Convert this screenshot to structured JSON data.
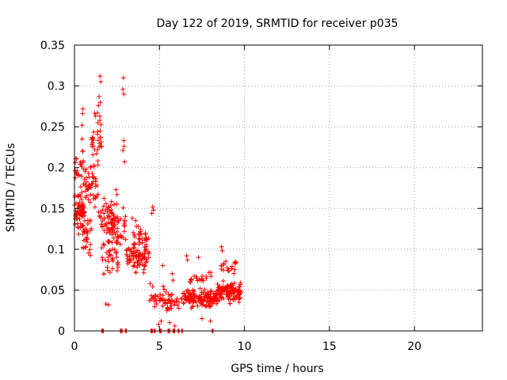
{
  "chart_data": {
    "type": "scatter",
    "title": "Day 122 of 2019, SRMTID for receiver p035",
    "xlabel": "GPS time / hours",
    "ylabel": "SRMTID / TECUs",
    "xlim": [
      0,
      24
    ],
    "ylim": [
      0,
      0.35
    ],
    "xticks": [
      0,
      5,
      10,
      15,
      20
    ],
    "xtick_labels": [
      "0",
      "5",
      "10",
      "15",
      "20"
    ],
    "yticks": [
      0,
      0.05,
      0.1,
      0.15,
      0.2,
      0.25,
      0.3,
      0.35
    ],
    "ytick_labels": [
      "0",
      "0.05",
      "0.1",
      "0.15",
      "0.2",
      "0.25",
      "0.3",
      "0.35"
    ],
    "grid": true,
    "marker": "plus",
    "series": [
      {
        "name": "SRMTID",
        "color": "#ff0000",
        "clusters": [
          {
            "x_range": [
              0.0,
              0.6
            ],
            "y_center": 0.14,
            "y_spread": 0.035,
            "count": 70
          },
          {
            "x_range": [
              0.0,
              0.6
            ],
            "y_center": 0.19,
            "y_spread": 0.04,
            "count": 25
          },
          {
            "x_range": [
              0.4,
              1.0
            ],
            "y_center": 0.12,
            "y_spread": 0.04,
            "count": 30
          },
          {
            "x_range": [
              0.6,
              1.4
            ],
            "y_center": 0.18,
            "y_spread": 0.04,
            "count": 45
          },
          {
            "x_range": [
              1.0,
              1.6
            ],
            "y_center": 0.24,
            "y_spread": 0.045,
            "count": 30
          },
          {
            "x_range": [
              1.4,
              2.4
            ],
            "y_center": 0.14,
            "y_spread": 0.03,
            "count": 60
          },
          {
            "x_range": [
              1.6,
              2.6
            ],
            "y_center": 0.09,
            "y_spread": 0.04,
            "count": 45
          },
          {
            "x_range": [
              2.2,
              3.0
            ],
            "y_center": 0.13,
            "y_spread": 0.03,
            "count": 30
          },
          {
            "x_range": [
              3.0,
              4.4
            ],
            "y_center": 0.09,
            "y_spread": 0.025,
            "count": 85
          },
          {
            "x_range": [
              3.4,
              4.4
            ],
            "y_center": 0.115,
            "y_spread": 0.02,
            "count": 25
          },
          {
            "x_range": [
              4.4,
              5.4
            ],
            "y_center": 0.04,
            "y_spread": 0.02,
            "count": 30
          },
          {
            "x_range": [
              5.4,
              6.4
            ],
            "y_center": 0.035,
            "y_spread": 0.02,
            "count": 30
          },
          {
            "x_range": [
              6.4,
              8.4
            ],
            "y_center": 0.04,
            "y_spread": 0.015,
            "count": 130
          },
          {
            "x_range": [
              6.8,
              8.2
            ],
            "y_center": 0.065,
            "y_spread": 0.015,
            "count": 20
          },
          {
            "x_range": [
              8.4,
              9.8
            ],
            "y_center": 0.048,
            "y_spread": 0.017,
            "count": 110
          },
          {
            "x_range": [
              8.6,
              9.6
            ],
            "y_center": 0.08,
            "y_spread": 0.012,
            "count": 20
          }
        ],
        "points": [
          {
            "x": 1.5,
            "y": 0.312
          },
          {
            "x": 1.55,
            "y": 0.305
          },
          {
            "x": 1.45,
            "y": 0.287
          },
          {
            "x": 1.52,
            "y": 0.28
          },
          {
            "x": 2.88,
            "y": 0.31
          },
          {
            "x": 2.9,
            "y": 0.29
          },
          {
            "x": 2.85,
            "y": 0.296
          },
          {
            "x": 0.5,
            "y": 0.272
          },
          {
            "x": 0.48,
            "y": 0.266
          },
          {
            "x": 0.45,
            "y": 0.252
          },
          {
            "x": 1.35,
            "y": 0.267
          },
          {
            "x": 1.38,
            "y": 0.255
          },
          {
            "x": 2.9,
            "y": 0.233
          },
          {
            "x": 2.92,
            "y": 0.226
          },
          {
            "x": 2.85,
            "y": 0.221
          },
          {
            "x": 2.95,
            "y": 0.207
          },
          {
            "x": 0.05,
            "y": 0.206
          },
          {
            "x": 0.1,
            "y": 0.193
          },
          {
            "x": 0.45,
            "y": 0.235
          },
          {
            "x": 0.5,
            "y": 0.22
          },
          {
            "x": 0.95,
            "y": 0.2
          },
          {
            "x": 1.2,
            "y": 0.222
          },
          {
            "x": 1.3,
            "y": 0.217
          },
          {
            "x": 4.6,
            "y": 0.152
          },
          {
            "x": 4.65,
            "y": 0.148
          },
          {
            "x": 4.55,
            "y": 0.144
          },
          {
            "x": 1.85,
            "y": 0.033
          },
          {
            "x": 2.0,
            "y": 0.032
          },
          {
            "x": 3.4,
            "y": 0.138
          },
          {
            "x": 3.6,
            "y": 0.135
          },
          {
            "x": 2.45,
            "y": 0.173
          },
          {
            "x": 2.5,
            "y": 0.167
          },
          {
            "x": 5.2,
            "y": 0.08
          },
          {
            "x": 5.75,
            "y": 0.07
          },
          {
            "x": 5.8,
            "y": 0.062
          },
          {
            "x": 6.6,
            "y": 0.092
          },
          {
            "x": 6.65,
            "y": 0.087
          },
          {
            "x": 7.3,
            "y": 0.09
          },
          {
            "x": 8.65,
            "y": 0.103
          },
          {
            "x": 8.7,
            "y": 0.098
          },
          {
            "x": 4.95,
            "y": 0.008
          },
          {
            "x": 5.1,
            "y": 0.012
          },
          {
            "x": 5.6,
            "y": 0.01
          },
          {
            "x": 5.9,
            "y": 0.006
          },
          {
            "x": 4.45,
            "y": 0.058
          },
          {
            "x": 8.0,
            "y": 0.012
          },
          {
            "x": 7.5,
            "y": 0.015
          }
        ],
        "zero_points_x": [
          1.6,
          1.65,
          1.7,
          2.7,
          2.75,
          2.8,
          3.0,
          3.05,
          4.5,
          4.55,
          4.6,
          4.7,
          4.75,
          5.0,
          5.05,
          5.1,
          5.5,
          5.55,
          5.6,
          5.8,
          5.85,
          5.9,
          6.1,
          6.15,
          6.3,
          6.35,
          8.1,
          8.15
        ]
      }
    ]
  }
}
